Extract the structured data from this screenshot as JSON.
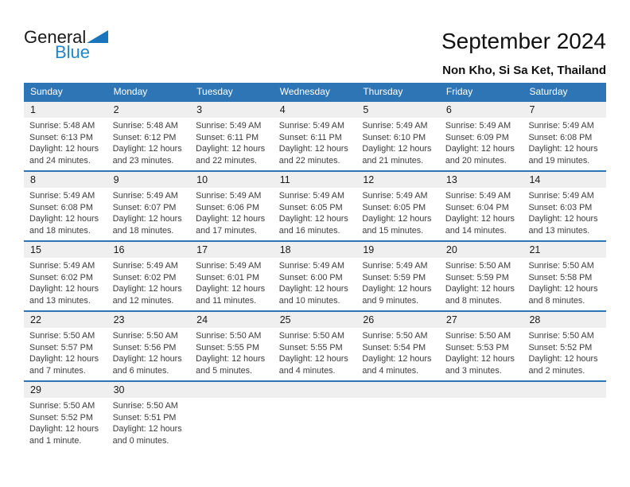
{
  "logo": {
    "general": "General",
    "blue": "Blue",
    "triangle_color": "#1b75bc",
    "blue_text_color": "#2287c8"
  },
  "header": {
    "title": "September 2024",
    "location": "Non Kho, Si Sa Ket, Thailand"
  },
  "colors": {
    "header_band": "#2e75b6",
    "day_number_band": "#efefef",
    "page_background": "#ffffff"
  },
  "calendar": {
    "day_headers": [
      "Sunday",
      "Monday",
      "Tuesday",
      "Wednesday",
      "Thursday",
      "Friday",
      "Saturday"
    ],
    "weeks": [
      [
        {
          "date": "1",
          "sunrise": "Sunrise: 5:48 AM",
          "sunset": "Sunset: 6:13 PM",
          "daylight1": "Daylight: 12 hours",
          "daylight2": "and 24 minutes."
        },
        {
          "date": "2",
          "sunrise": "Sunrise: 5:48 AM",
          "sunset": "Sunset: 6:12 PM",
          "daylight1": "Daylight: 12 hours",
          "daylight2": "and 23 minutes."
        },
        {
          "date": "3",
          "sunrise": "Sunrise: 5:49 AM",
          "sunset": "Sunset: 6:11 PM",
          "daylight1": "Daylight: 12 hours",
          "daylight2": "and 22 minutes."
        },
        {
          "date": "4",
          "sunrise": "Sunrise: 5:49 AM",
          "sunset": "Sunset: 6:11 PM",
          "daylight1": "Daylight: 12 hours",
          "daylight2": "and 22 minutes."
        },
        {
          "date": "5",
          "sunrise": "Sunrise: 5:49 AM",
          "sunset": "Sunset: 6:10 PM",
          "daylight1": "Daylight: 12 hours",
          "daylight2": "and 21 minutes."
        },
        {
          "date": "6",
          "sunrise": "Sunrise: 5:49 AM",
          "sunset": "Sunset: 6:09 PM",
          "daylight1": "Daylight: 12 hours",
          "daylight2": "and 20 minutes."
        },
        {
          "date": "7",
          "sunrise": "Sunrise: 5:49 AM",
          "sunset": "Sunset: 6:08 PM",
          "daylight1": "Daylight: 12 hours",
          "daylight2": "and 19 minutes."
        }
      ],
      [
        {
          "date": "8",
          "sunrise": "Sunrise: 5:49 AM",
          "sunset": "Sunset: 6:08 PM",
          "daylight1": "Daylight: 12 hours",
          "daylight2": "and 18 minutes."
        },
        {
          "date": "9",
          "sunrise": "Sunrise: 5:49 AM",
          "sunset": "Sunset: 6:07 PM",
          "daylight1": "Daylight: 12 hours",
          "daylight2": "and 18 minutes."
        },
        {
          "date": "10",
          "sunrise": "Sunrise: 5:49 AM",
          "sunset": "Sunset: 6:06 PM",
          "daylight1": "Daylight: 12 hours",
          "daylight2": "and 17 minutes."
        },
        {
          "date": "11",
          "sunrise": "Sunrise: 5:49 AM",
          "sunset": "Sunset: 6:05 PM",
          "daylight1": "Daylight: 12 hours",
          "daylight2": "and 16 minutes."
        },
        {
          "date": "12",
          "sunrise": "Sunrise: 5:49 AM",
          "sunset": "Sunset: 6:05 PM",
          "daylight1": "Daylight: 12 hours",
          "daylight2": "and 15 minutes."
        },
        {
          "date": "13",
          "sunrise": "Sunrise: 5:49 AM",
          "sunset": "Sunset: 6:04 PM",
          "daylight1": "Daylight: 12 hours",
          "daylight2": "and 14 minutes."
        },
        {
          "date": "14",
          "sunrise": "Sunrise: 5:49 AM",
          "sunset": "Sunset: 6:03 PM",
          "daylight1": "Daylight: 12 hours",
          "daylight2": "and 13 minutes."
        }
      ],
      [
        {
          "date": "15",
          "sunrise": "Sunrise: 5:49 AM",
          "sunset": "Sunset: 6:02 PM",
          "daylight1": "Daylight: 12 hours",
          "daylight2": "and 13 minutes."
        },
        {
          "date": "16",
          "sunrise": "Sunrise: 5:49 AM",
          "sunset": "Sunset: 6:02 PM",
          "daylight1": "Daylight: 12 hours",
          "daylight2": "and 12 minutes."
        },
        {
          "date": "17",
          "sunrise": "Sunrise: 5:49 AM",
          "sunset": "Sunset: 6:01 PM",
          "daylight1": "Daylight: 12 hours",
          "daylight2": "and 11 minutes."
        },
        {
          "date": "18",
          "sunrise": "Sunrise: 5:49 AM",
          "sunset": "Sunset: 6:00 PM",
          "daylight1": "Daylight: 12 hours",
          "daylight2": "and 10 minutes."
        },
        {
          "date": "19",
          "sunrise": "Sunrise: 5:49 AM",
          "sunset": "Sunset: 5:59 PM",
          "daylight1": "Daylight: 12 hours",
          "daylight2": "and 9 minutes."
        },
        {
          "date": "20",
          "sunrise": "Sunrise: 5:50 AM",
          "sunset": "Sunset: 5:59 PM",
          "daylight1": "Daylight: 12 hours",
          "daylight2": "and 8 minutes."
        },
        {
          "date": "21",
          "sunrise": "Sunrise: 5:50 AM",
          "sunset": "Sunset: 5:58 PM",
          "daylight1": "Daylight: 12 hours",
          "daylight2": "and 8 minutes."
        }
      ],
      [
        {
          "date": "22",
          "sunrise": "Sunrise: 5:50 AM",
          "sunset": "Sunset: 5:57 PM",
          "daylight1": "Daylight: 12 hours",
          "daylight2": "and 7 minutes."
        },
        {
          "date": "23",
          "sunrise": "Sunrise: 5:50 AM",
          "sunset": "Sunset: 5:56 PM",
          "daylight1": "Daylight: 12 hours",
          "daylight2": "and 6 minutes."
        },
        {
          "date": "24",
          "sunrise": "Sunrise: 5:50 AM",
          "sunset": "Sunset: 5:55 PM",
          "daylight1": "Daylight: 12 hours",
          "daylight2": "and 5 minutes."
        },
        {
          "date": "25",
          "sunrise": "Sunrise: 5:50 AM",
          "sunset": "Sunset: 5:55 PM",
          "daylight1": "Daylight: 12 hours",
          "daylight2": "and 4 minutes."
        },
        {
          "date": "26",
          "sunrise": "Sunrise: 5:50 AM",
          "sunset": "Sunset: 5:54 PM",
          "daylight1": "Daylight: 12 hours",
          "daylight2": "and 4 minutes."
        },
        {
          "date": "27",
          "sunrise": "Sunrise: 5:50 AM",
          "sunset": "Sunset: 5:53 PM",
          "daylight1": "Daylight: 12 hours",
          "daylight2": "and 3 minutes."
        },
        {
          "date": "28",
          "sunrise": "Sunrise: 5:50 AM",
          "sunset": "Sunset: 5:52 PM",
          "daylight1": "Daylight: 12 hours",
          "daylight2": "and 2 minutes."
        }
      ],
      [
        {
          "date": "29",
          "sunrise": "Sunrise: 5:50 AM",
          "sunset": "Sunset: 5:52 PM",
          "daylight1": "Daylight: 12 hours",
          "daylight2": "and 1 minute."
        },
        {
          "date": "30",
          "sunrise": "Sunrise: 5:50 AM",
          "sunset": "Sunset: 5:51 PM",
          "daylight1": "Daylight: 12 hours",
          "daylight2": "and 0 minutes."
        },
        null,
        null,
        null,
        null,
        null
      ]
    ]
  }
}
